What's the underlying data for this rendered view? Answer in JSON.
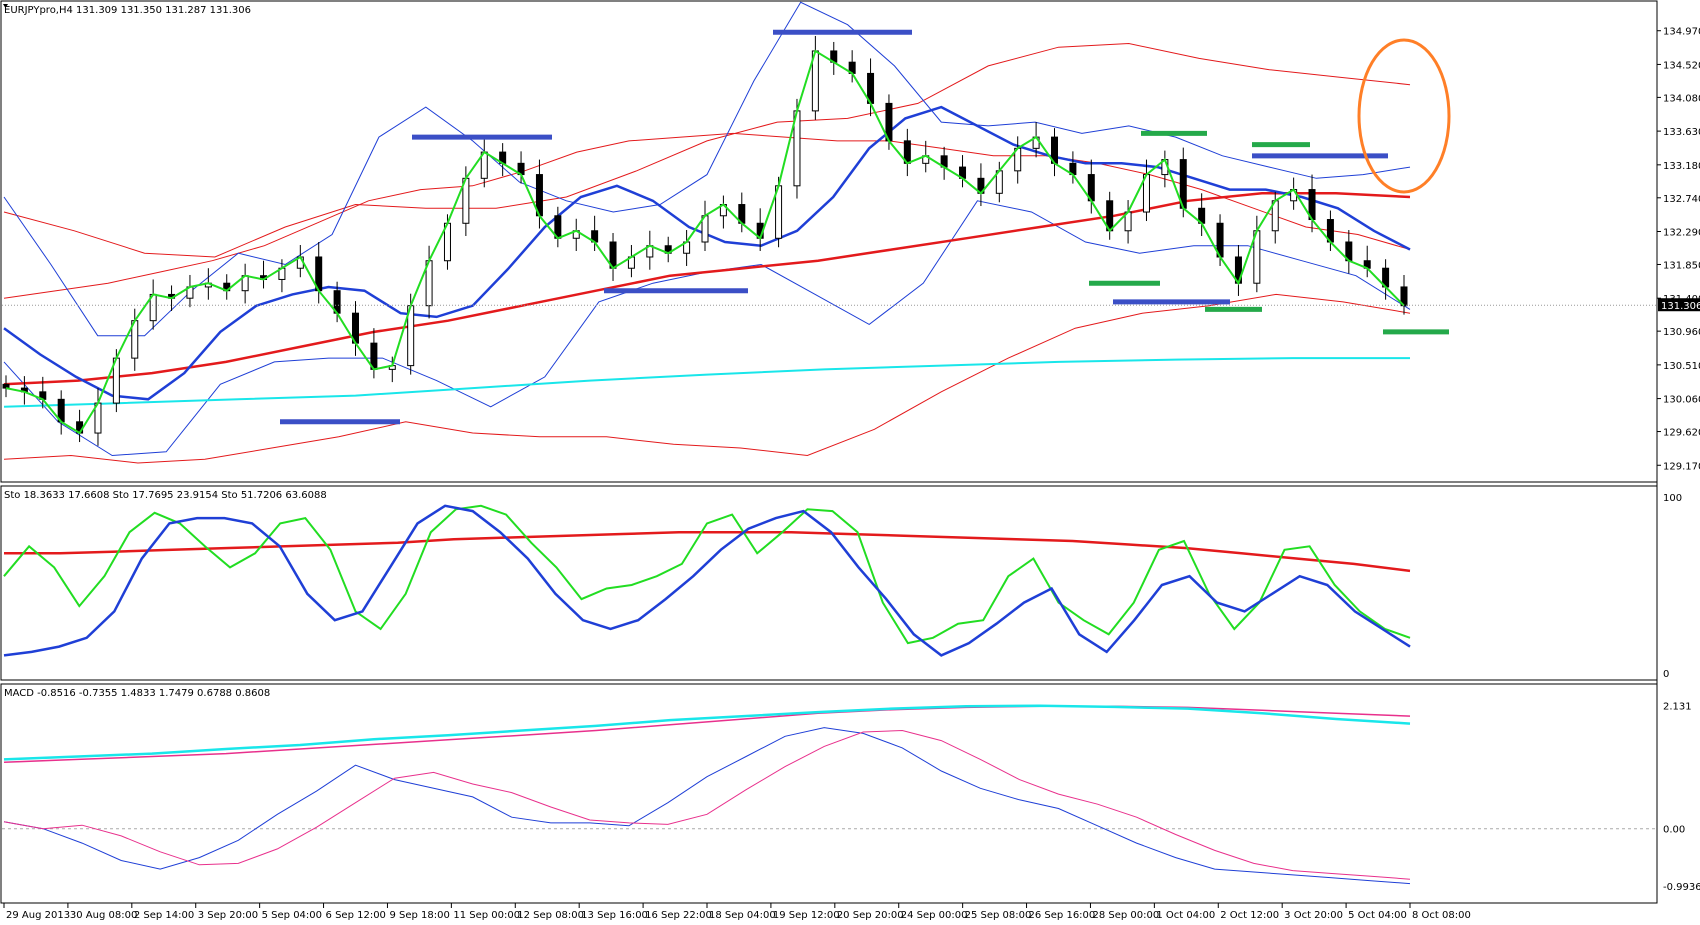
{
  "chart_data": [
    {
      "type": "candlestick",
      "title": "EURJPYpro,H4  131.309 131.350 131.287 131.306",
      "ylim": [
        129.0,
        135.3
      ],
      "y_ticks": [
        "134.970",
        "134.520",
        "134.080",
        "133.630",
        "133.180",
        "132.740",
        "132.290",
        "131.850",
        "131.400",
        "130.960",
        "130.510",
        "130.060",
        "129.620",
        "129.170"
      ],
      "last_price": "131.306",
      "x_ticks": [
        "29 Aug 2013",
        "30 Aug 08:00",
        "2 Sep 14:00",
        "3 Sep 20:00",
        "5 Sep 04:00",
        "6 Sep 12:00",
        "9 Sep 18:00",
        "11 Sep 00:00",
        "12 Sep 08:00",
        "13 Sep 16:00",
        "16 Sep 22:00",
        "18 Sep 04:00",
        "19 Sep 12:00",
        "20 Sep 20:00",
        "24 Sep 00:00",
        "25 Sep 08:00",
        "26 Sep 16:00",
        "28 Sep 00:00",
        "1 Oct 04:00",
        "2 Oct 12:00",
        "3 Oct 20:00",
        "5 Oct 04:00",
        "8 Oct 08:00"
      ],
      "close_series": [
        130.2,
        130.15,
        130.05,
        129.75,
        129.6,
        130.0,
        130.6,
        131.1,
        131.45,
        131.4,
        131.55,
        131.6,
        131.5,
        131.7,
        131.65,
        131.8,
        131.95,
        131.5,
        131.2,
        130.8,
        130.45,
        130.5,
        131.3,
        131.9,
        132.4,
        133.0,
        133.35,
        133.2,
        133.05,
        132.5,
        132.2,
        132.3,
        132.15,
        131.8,
        131.95,
        132.1,
        132.0,
        132.15,
        132.5,
        132.65,
        132.4,
        132.2,
        132.9,
        133.9,
        134.7,
        134.55,
        134.4,
        134.0,
        133.5,
        133.2,
        133.3,
        133.15,
        133.0,
        132.8,
        133.1,
        133.4,
        133.55,
        133.2,
        133.05,
        132.7,
        132.3,
        132.55,
        133.05,
        133.25,
        132.6,
        132.4,
        131.95,
        131.6,
        132.3,
        132.7,
        132.85,
        132.45,
        132.15,
        131.9,
        131.8,
        131.55,
        131.3
      ],
      "mid_band": [
        131.0,
        130.65,
        130.35,
        130.1,
        130.05,
        130.4,
        130.95,
        131.3,
        131.45,
        131.55,
        131.5,
        131.2,
        131.15,
        131.3,
        131.8,
        132.35,
        132.75,
        132.9,
        132.7,
        132.35,
        132.15,
        132.1,
        132.3,
        132.75,
        133.4,
        133.8,
        133.95,
        133.7,
        133.45,
        133.3,
        133.2,
        133.2,
        133.15,
        133.0,
        132.85,
        132.85,
        132.75,
        132.6,
        132.3,
        132.05
      ],
      "lower_band_1": [
        130.55,
        129.75,
        129.3,
        129.35,
        130.25,
        130.55,
        130.6,
        130.6,
        130.3,
        129.95,
        130.35,
        131.35,
        131.6,
        131.75,
        131.85,
        131.45,
        131.05,
        131.6,
        132.7,
        132.55,
        132.15,
        132.0,
        132.1,
        132.1,
        131.9,
        131.7,
        131.25
      ],
      "upper_band_1": [
        132.75,
        131.85,
        130.9,
        130.9,
        131.5,
        132.0,
        131.85,
        132.25,
        133.55,
        133.95,
        133.5,
        132.95,
        132.7,
        132.55,
        132.65,
        133.05,
        134.3,
        135.35,
        135.05,
        134.5,
        133.75,
        133.7,
        133.75,
        133.6,
        133.7,
        133.55,
        133.3,
        133.15,
        133.0,
        133.05,
        133.15
      ],
      "bollinger_upper": [
        132.55,
        132.3,
        132.0,
        131.95,
        132.35,
        132.65,
        132.6,
        132.6,
        132.75,
        133.1,
        133.5,
        133.75,
        133.8,
        134.0,
        134.5,
        134.75,
        134.8,
        134.6,
        134.45,
        134.35,
        134.25
      ],
      "bollinger_lower": [
        129.25,
        129.3,
        129.2,
        129.25,
        129.4,
        129.55,
        129.75,
        129.6,
        129.55,
        129.55,
        129.45,
        129.4,
        129.3,
        129.65,
        130.15,
        130.6,
        131.0,
        131.2,
        131.3,
        131.45,
        131.35,
        131.2
      ],
      "sma_red": [
        130.25,
        130.3,
        130.4,
        130.55,
        130.75,
        130.95,
        131.1,
        131.3,
        131.5,
        131.7,
        131.8,
        131.9,
        132.05,
        132.2,
        132.35,
        132.5,
        132.7,
        132.8,
        132.8,
        132.75
      ],
      "inner_red": [
        131.4,
        131.5,
        131.6,
        131.75,
        131.9,
        132.1,
        132.4,
        132.7,
        132.85,
        132.9,
        133.1,
        133.35,
        133.5,
        133.55,
        133.6,
        133.55,
        133.5,
        133.5,
        133.4,
        133.3,
        133.3,
        133.2,
        133.05,
        132.85,
        132.6,
        132.35,
        132.25,
        132.05
      ],
      "ma_cyan": [
        129.95,
        130.0,
        130.05,
        130.1,
        130.2,
        130.3,
        130.38,
        130.45,
        130.5,
        130.55,
        130.58,
        130.6,
        130.6
      ],
      "support_resistance_blue": [
        [
          129.75,
          "low"
        ],
        [
          133.55,
          "mid"
        ],
        [
          131.5,
          "low"
        ],
        [
          134.95,
          "high"
        ],
        [
          131.35,
          "low"
        ],
        [
          133.3,
          "mid"
        ]
      ],
      "support_resistance_green": [
        [
          133.6,
          "mid"
        ],
        [
          131.6,
          "low"
        ],
        [
          133.45,
          "mid"
        ],
        [
          131.25,
          "low"
        ],
        [
          130.95,
          "low"
        ]
      ]
    },
    {
      "type": "line",
      "title": "Sto 18.3633 17.6608  Sto 17.7695 23.9154  Sto 51.7206 63.6088",
      "ylim": [
        0,
        100
      ],
      "y_ticks": [
        "100",
        "0"
      ],
      "series": [
        {
          "values": [
            55,
            72,
            60,
            38,
            55,
            80,
            91,
            85,
            72,
            60,
            68,
            85,
            88,
            70,
            35,
            25,
            45,
            80,
            93,
            95,
            90,
            74,
            60,
            42,
            48,
            50,
            55,
            62,
            85,
            90,
            68,
            80,
            93,
            92,
            80,
            40,
            17,
            20,
            28,
            30,
            55,
            65,
            40,
            30,
            22,
            40,
            70,
            75,
            45,
            25,
            40,
            70,
            72,
            50,
            35,
            25,
            20
          ]
        },
        {
          "values": [
            10,
            12,
            15,
            20,
            35,
            65,
            85,
            88,
            88,
            85,
            72,
            45,
            30,
            35,
            60,
            85,
            95,
            92,
            80,
            65,
            45,
            30,
            25,
            30,
            42,
            55,
            70,
            82,
            88,
            92,
            80,
            60,
            42,
            22,
            10,
            17,
            28,
            40,
            48,
            22,
            12,
            30,
            50,
            55,
            40,
            35,
            45,
            55,
            50,
            35,
            25,
            15
          ]
        },
        {
          "values": [
            68,
            68,
            69,
            70,
            71,
            72,
            73,
            74,
            76,
            77,
            78,
            79,
            80,
            80,
            80,
            79,
            78,
            77,
            76,
            75,
            73,
            71,
            68,
            65,
            62,
            58
          ]
        }
      ]
    },
    {
      "type": "line",
      "title": "MACD -0.8516 -0.7355 1.4833 1.7479 0.6788 0.8608",
      "ylim": [
        -1.2,
        2.35
      ],
      "y_ticks": [
        "2.131",
        "0.00",
        "-0.9936"
      ],
      "series": [
        {
          "values": [
            0.12,
            0.0,
            -0.25,
            -0.55,
            -0.7,
            -0.5,
            -0.2,
            0.25,
            0.65,
            1.1,
            0.85,
            0.7,
            0.55,
            0.2,
            0.1,
            0.1,
            0.05,
            0.45,
            0.9,
            1.25,
            1.6,
            1.75,
            1.65,
            1.4,
            1.0,
            0.7,
            0.5,
            0.35,
            0.05,
            -0.25,
            -0.5,
            -0.7,
            -0.75,
            -0.8,
            -0.85,
            -0.9,
            -0.95
          ]
        },
        {
          "values": [
            1.2,
            1.25,
            1.3,
            1.38,
            1.45,
            1.55,
            1.62,
            1.7,
            1.78,
            1.88,
            1.95,
            2.02,
            2.08,
            2.12,
            2.13,
            2.11,
            2.08,
            2.0,
            1.9,
            1.82
          ]
        },
        {
          "values": [
            1.15,
            1.2,
            1.25,
            1.3,
            1.38,
            1.46,
            1.54,
            1.62,
            1.7,
            1.8,
            1.9,
            2.0,
            2.06,
            2.1,
            2.12,
            2.12,
            2.1,
            2.05,
            2.0,
            1.95
          ]
        }
      ]
    }
  ]
}
